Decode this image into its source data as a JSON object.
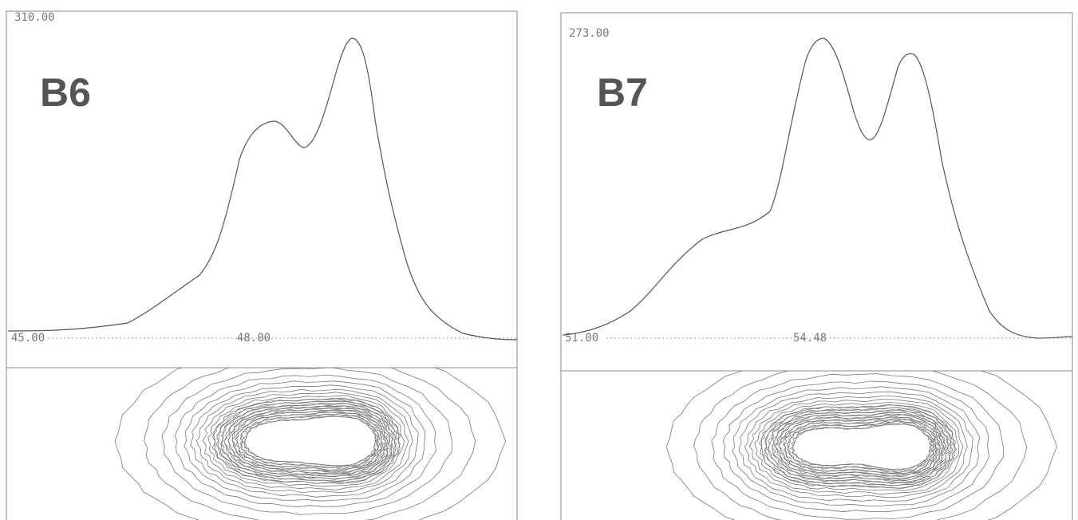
{
  "panels": [
    {
      "label": "B6",
      "top_label": "310.00",
      "baseline_label": "45.00",
      "center_label": "48.00"
    },
    {
      "label": "B7",
      "top_label": "273.00",
      "baseline_label": "51.00",
      "center_label": "54.48"
    }
  ]
}
